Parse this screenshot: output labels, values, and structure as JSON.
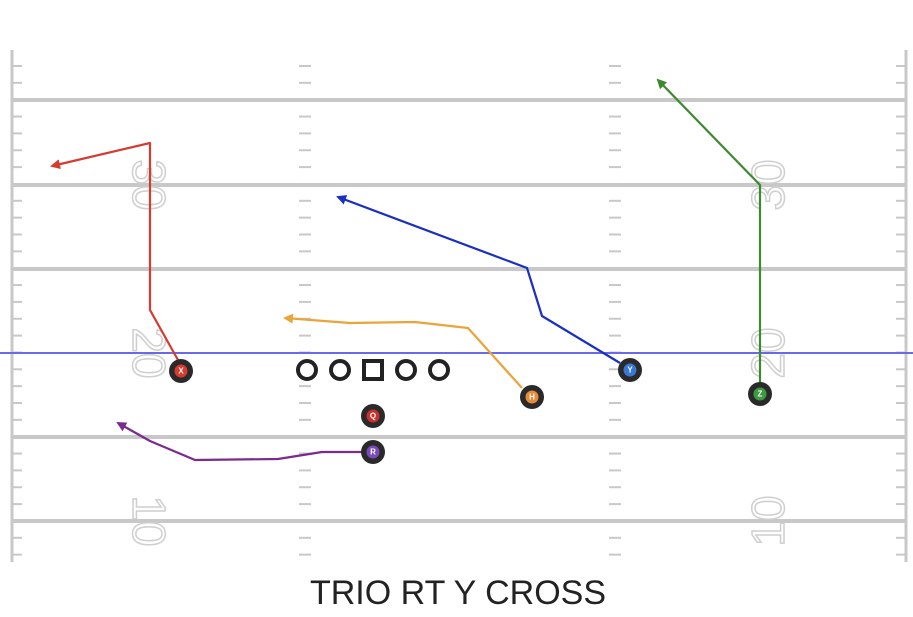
{
  "title": "TRIO RT Y CROSS",
  "yard_numbers": {
    "left": [
      "30",
      "20",
      "10"
    ],
    "right": [
      "30",
      "20",
      "10"
    ]
  },
  "players": [
    {
      "label": "X"
    },
    {
      "label": "Q"
    },
    {
      "label": "R"
    },
    {
      "label": "H"
    },
    {
      "label": "Y"
    },
    {
      "label": "Z"
    }
  ]
}
